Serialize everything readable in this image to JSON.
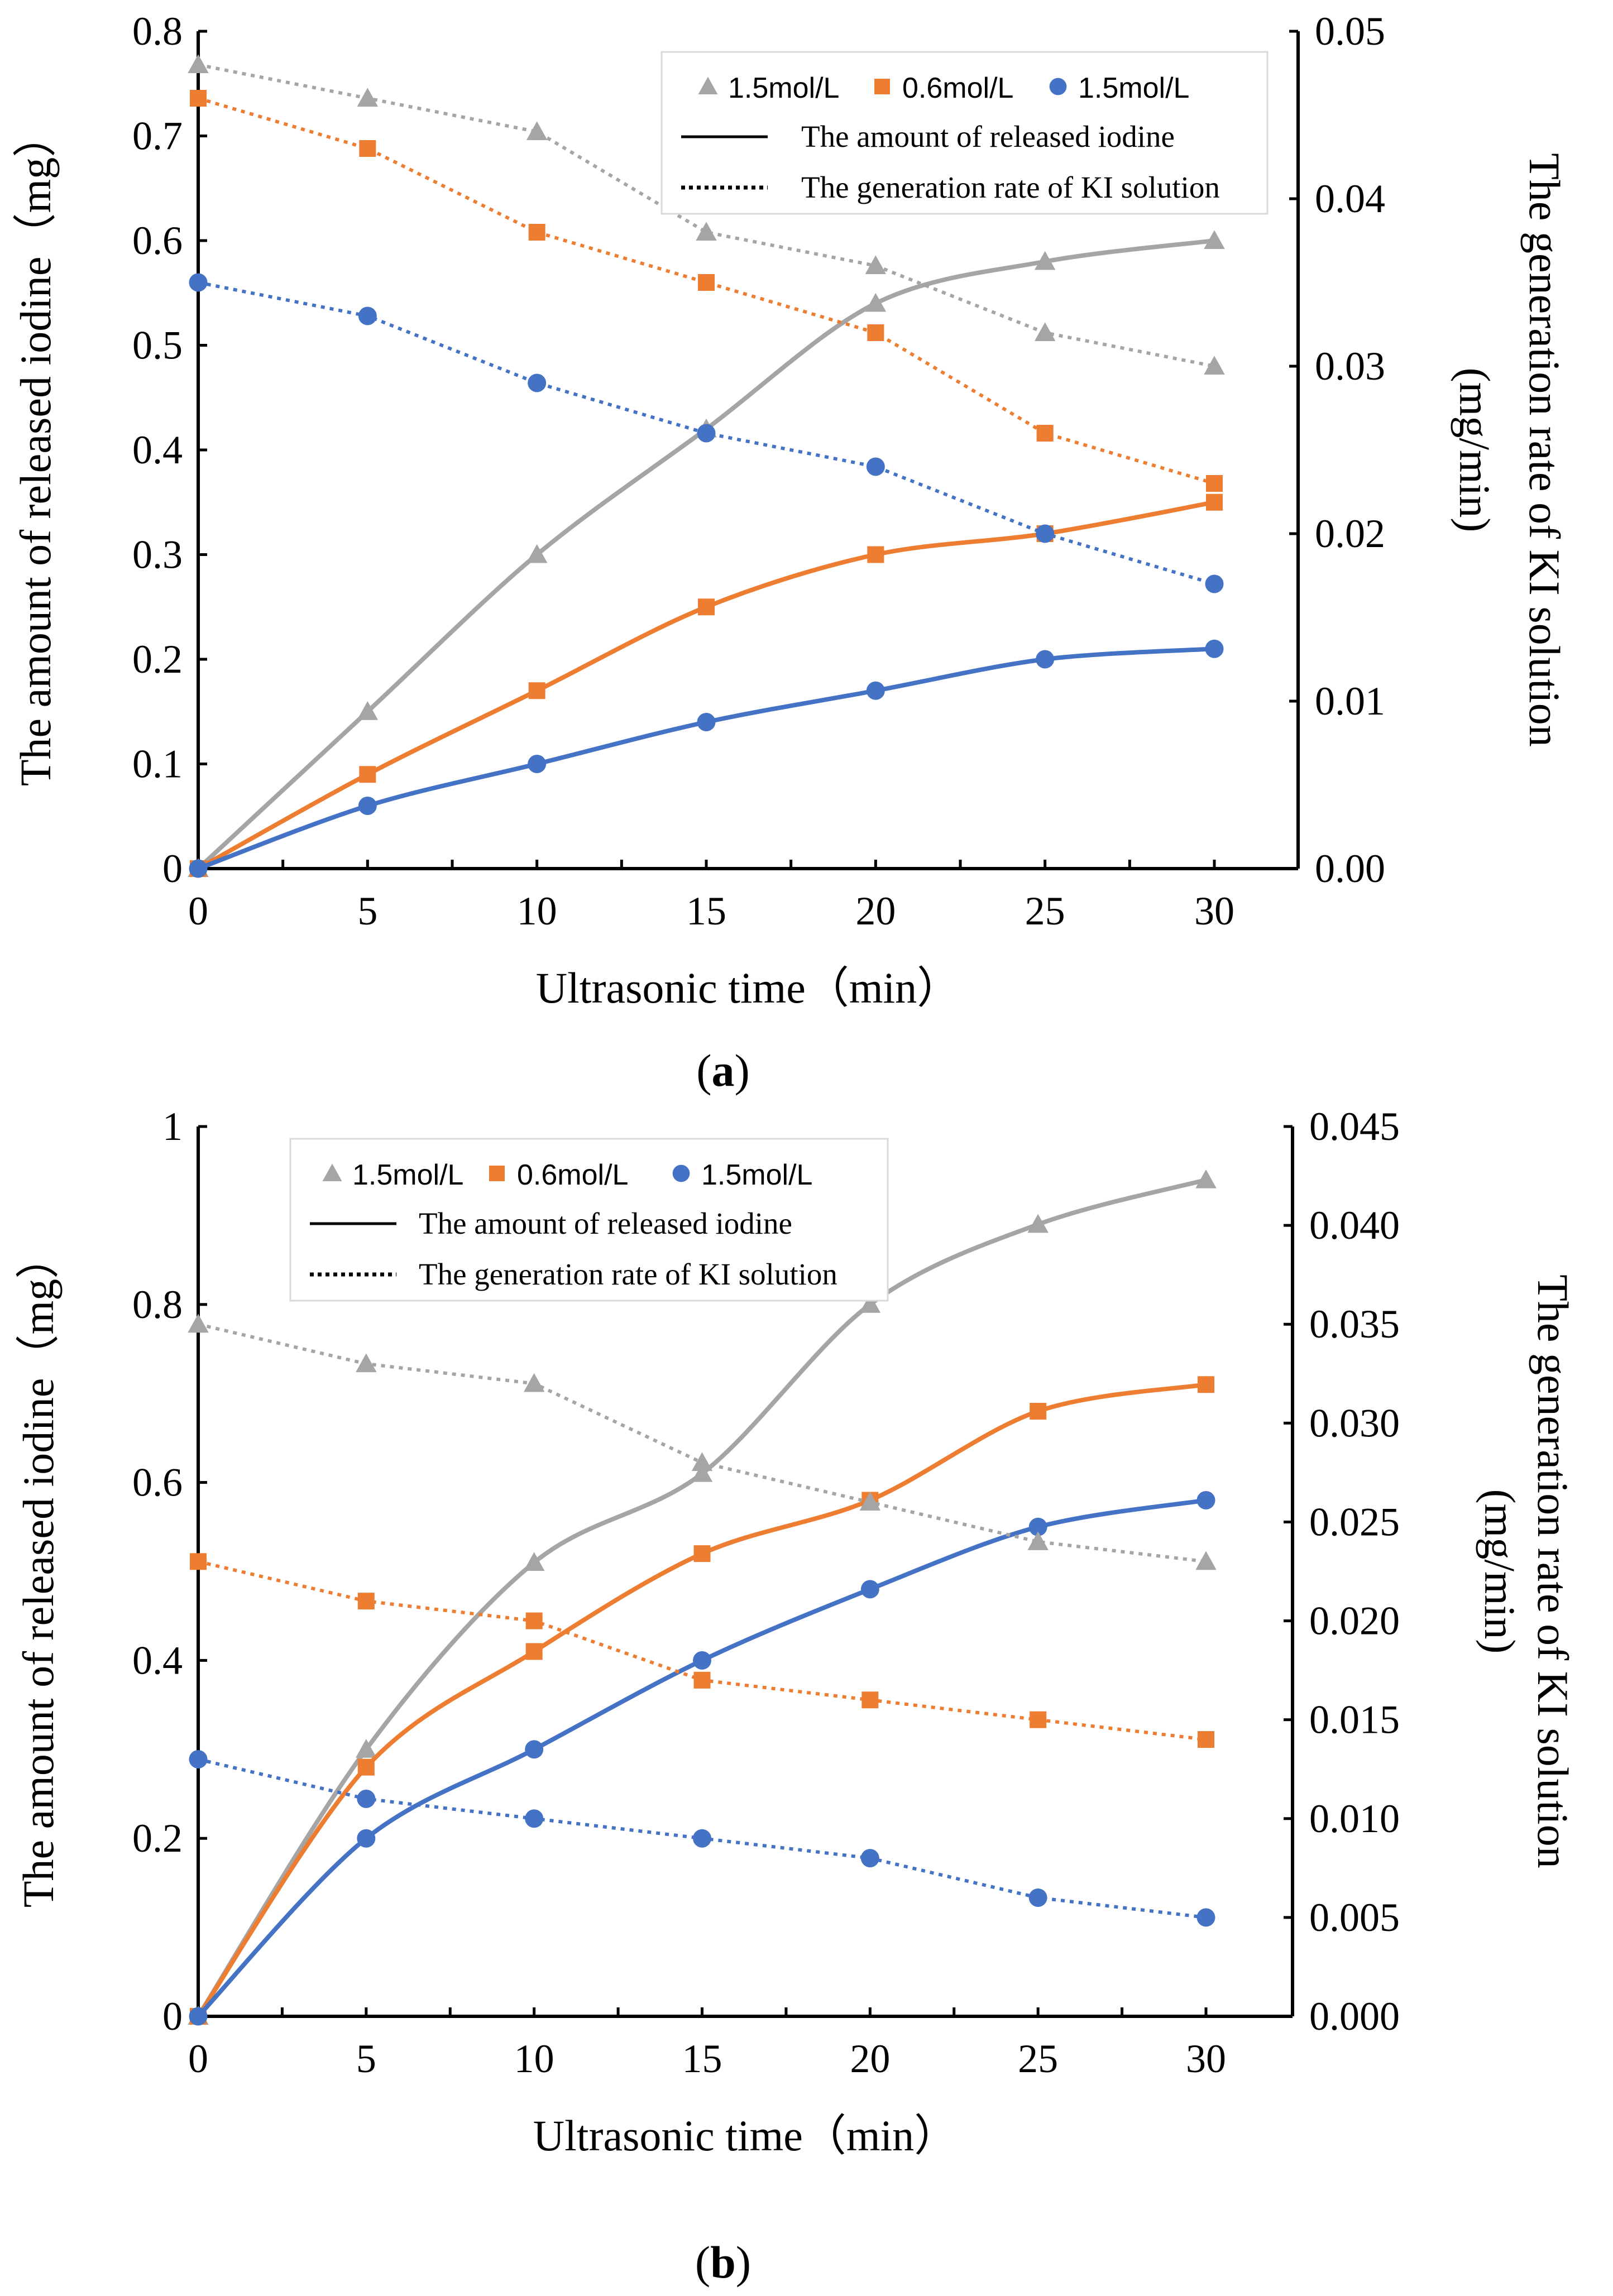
{
  "figure": {
    "panels": [
      {
        "label": "a",
        "legend": {
          "markers": [
            {
              "text": "1.5mol/L",
              "marker": "triangle",
              "color": "#a5a5a5"
            },
            {
              "text": "0.6mol/L",
              "marker": "square",
              "color": "#ed7d31"
            },
            {
              "text": "1.5mol/L",
              "marker": "circle",
              "color": "#4472c4"
            }
          ],
          "solid_text": "The amount of released iodine",
          "dotted_text": "The generation rate of KI solution"
        },
        "chart_data": {
          "type": "line",
          "xlabel": "Ultrasonic time（min）",
          "ylabel": "The amount of released iodine（mg）",
          "y2label_line1": "The generation rate of KI solution",
          "y2label_line2": "(mg/min)",
          "x": [
            0,
            5,
            10,
            15,
            20,
            25,
            30
          ],
          "xlim": [
            0,
            30
          ],
          "xticks": [
            0,
            5,
            10,
            15,
            20,
            25,
            30
          ],
          "ylim": [
            0,
            0.8
          ],
          "yticks": [
            0,
            0.1,
            0.2,
            0.3,
            0.4,
            0.5,
            0.6,
            0.7,
            0.8
          ],
          "ytick_labels": [
            "0",
            "0.1",
            "0.2",
            "0.3",
            "0.4",
            "0.5",
            "0.6",
            "0.7",
            "0.8"
          ],
          "y2lim": [
            0,
            0.05
          ],
          "y2ticks": [
            0,
            0.01,
            0.02,
            0.03,
            0.04,
            0.05
          ],
          "y2tick_labels": [
            "0.00",
            "0.01",
            "0.02",
            "0.03",
            "0.04",
            "0.05"
          ],
          "grid": false,
          "legend_position": "top-right",
          "series": [
            {
              "color": "#a5a5a5",
              "marker": "triangle",
              "style": "solid",
              "axis": "left",
              "values": [
                0,
                0.15,
                0.3,
                0.42,
                0.54,
                0.58,
                0.6
              ]
            },
            {
              "color": "#ed7d31",
              "marker": "square",
              "style": "solid",
              "axis": "left",
              "values": [
                0,
                0.09,
                0.17,
                0.25,
                0.3,
                0.32,
                0.35
              ]
            },
            {
              "color": "#4472c4",
              "marker": "circle",
              "style": "solid",
              "axis": "left",
              "values": [
                0,
                0.06,
                0.1,
                0.14,
                0.17,
                0.2,
                0.21
              ]
            },
            {
              "color": "#a5a5a5",
              "marker": "triangle",
              "style": "dotted",
              "axis": "right",
              "values": [
                0.048,
                0.046,
                0.044,
                0.038,
                0.036,
                0.032,
                0.03
              ]
            },
            {
              "color": "#ed7d31",
              "marker": "square",
              "style": "dotted",
              "axis": "right",
              "values": [
                0.046,
                0.043,
                0.038,
                0.035,
                0.032,
                0.026,
                0.023
              ]
            },
            {
              "color": "#4472c4",
              "marker": "circle",
              "style": "dotted",
              "axis": "right",
              "values": [
                0.035,
                0.033,
                0.029,
                0.026,
                0.024,
                0.02,
                0.017
              ]
            }
          ]
        }
      },
      {
        "label": "b",
        "legend": {
          "markers": [
            {
              "text": "1.5mol/L",
              "marker": "triangle",
              "color": "#a5a5a5"
            },
            {
              "text": "0.6mol/L",
              "marker": "square",
              "color": "#ed7d31"
            },
            {
              "text": "1.5mol/L",
              "marker": "circle",
              "color": "#4472c4"
            }
          ],
          "solid_text": "The amount of released iodine",
          "dotted_text": "The generation rate of KI solution"
        },
        "chart_data": {
          "type": "line",
          "xlabel": "Ultrasonic time（min）",
          "ylabel": "The amount of released iodine（mg）",
          "y2label_line1": "The generation rate of KI solution",
          "y2label_line2": "(mg/min)",
          "x": [
            0,
            5,
            10,
            15,
            20,
            25,
            30
          ],
          "xlim": [
            0,
            30
          ],
          "xticks": [
            0,
            5,
            10,
            15,
            20,
            25,
            30
          ],
          "ylim": [
            0,
            1
          ],
          "yticks": [
            0,
            0.2,
            0.4,
            0.6,
            0.8,
            1
          ],
          "ytick_labels": [
            "0",
            "0.2",
            "0.4",
            "0.6",
            "0.8",
            "1"
          ],
          "y2lim": [
            0,
            0.045
          ],
          "y2ticks": [
            0,
            0.005,
            0.01,
            0.015,
            0.02,
            0.025,
            0.03,
            0.035,
            0.04,
            0.045
          ],
          "y2tick_labels": [
            "0.000",
            "0.005",
            "0.010",
            "0.015",
            "0.020",
            "0.025",
            "0.030",
            "0.035",
            "0.040",
            "0.045"
          ],
          "grid": false,
          "legend_position": "top-center",
          "series": [
            {
              "color": "#a5a5a5",
              "marker": "triangle",
              "style": "solid",
              "axis": "left",
              "values": [
                0,
                0.3,
                0.51,
                0.61,
                0.8,
                0.89,
                0.94
              ]
            },
            {
              "color": "#ed7d31",
              "marker": "square",
              "style": "solid",
              "axis": "left",
              "values": [
                0,
                0.28,
                0.41,
                0.52,
                0.58,
                0.68,
                0.71
              ]
            },
            {
              "color": "#4472c4",
              "marker": "circle",
              "style": "solid",
              "axis": "left",
              "values": [
                0,
                0.2,
                0.3,
                0.4,
                0.48,
                0.55,
                0.58
              ]
            },
            {
              "color": "#a5a5a5",
              "marker": "triangle",
              "style": "dotted",
              "axis": "right",
              "values": [
                0.035,
                0.033,
                0.032,
                0.028,
                0.026,
                0.024,
                0.023
              ]
            },
            {
              "color": "#ed7d31",
              "marker": "square",
              "style": "dotted",
              "axis": "right",
              "values": [
                0.023,
                0.021,
                0.02,
                0.017,
                0.016,
                0.015,
                0.014
              ]
            },
            {
              "color": "#4472c4",
              "marker": "circle",
              "style": "dotted",
              "axis": "right",
              "values": [
                0.013,
                0.011,
                0.01,
                0.009,
                0.008,
                0.006,
                0.005
              ]
            }
          ]
        }
      }
    ]
  }
}
